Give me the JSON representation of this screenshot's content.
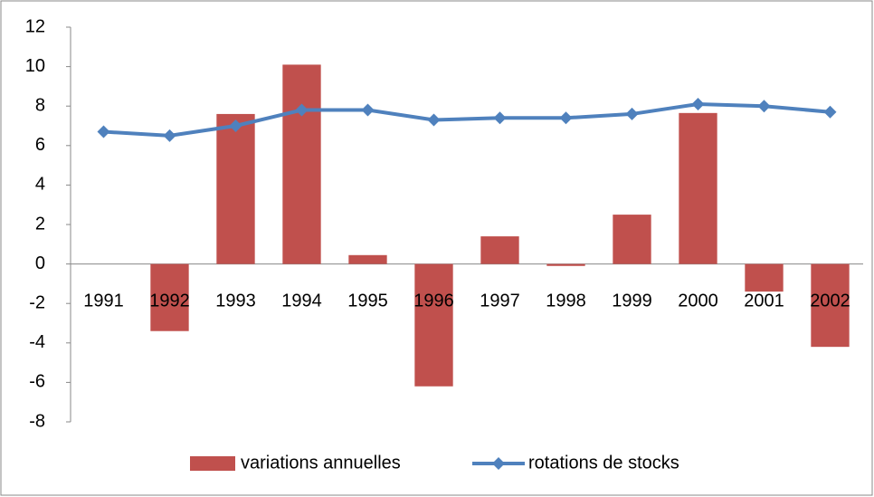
{
  "chart_data": {
    "type": "bar_line",
    "categories": [
      "1991",
      "1992",
      "1993",
      "1994",
      "1995",
      "1996",
      "1997",
      "1998",
      "1999",
      "2000",
      "2001",
      "2002"
    ],
    "series": [
      {
        "name": "variations annuelles",
        "type": "bar",
        "color": "#c0504d",
        "values": [
          0,
          -3.4,
          7.6,
          10.1,
          0.45,
          -6.2,
          1.4,
          -0.1,
          2.5,
          7.65,
          -1.4,
          -4.2
        ]
      },
      {
        "name": "rotations de stocks",
        "type": "line",
        "color": "#4f81bd",
        "values": [
          6.7,
          6.5,
          7.0,
          7.8,
          7.8,
          7.3,
          7.4,
          7.4,
          7.6,
          8.1,
          8.0,
          7.7
        ]
      }
    ],
    "ylim": [
      -8,
      12
    ],
    "yticks": [
      -8,
      -6,
      -4,
      -2,
      0,
      2,
      4,
      6,
      8,
      10,
      12
    ],
    "grid": false,
    "legend": "bottom"
  }
}
